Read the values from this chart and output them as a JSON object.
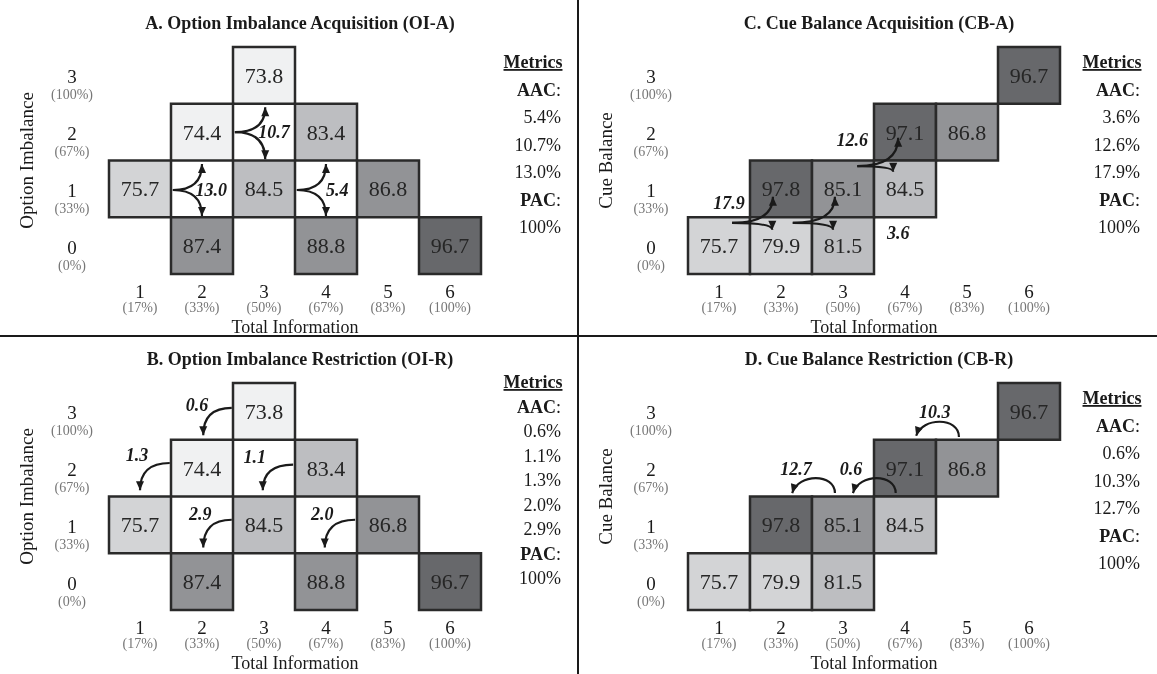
{
  "chart_data": [
    {
      "type": "heatmap",
      "data_labels": true,
      "title": "A. Option Imbalance Acquisition (OI-A)",
      "xlabel": "Total Information",
      "ylabel": "Option Imbalance",
      "categories": [
        "1\n(17%)",
        "2\n(33%)",
        "3\n(50%)",
        "4\n(67%)",
        "5\n(83%)",
        "6\n(100%)"
      ],
      "y_categories": [
        "3\n(100%)",
        "2\n(67%)",
        "1\n(33%)",
        "0\n(0%)"
      ],
      "cells": [
        [
          null,
          null,
          73.8,
          null,
          null,
          null
        ],
        [
          null,
          74.4,
          null,
          83.4,
          null,
          null
        ],
        [
          75.7,
          null,
          84.5,
          null,
          86.8,
          null
        ],
        [
          null,
          87.4,
          null,
          88.8,
          null,
          96.7
        ]
      ],
      "annotations": [
        "10.7",
        "13.0",
        "5.4",
        "Metrics\nAAC:\n5.4%\n10.7%\n13.0%\nPAC:\n100%"
      ]
    },
    {
      "type": "heatmap",
      "data_labels": true,
      "title": "C. Cue Balance Acquisition (CB-A)",
      "xlabel": "Total Information",
      "ylabel": "Cue Balance",
      "categories": [
        "1\n(17%)",
        "2\n(33%)",
        "3\n(50%)",
        "4\n(67%)",
        "5\n(83%)",
        "6\n(100%)"
      ],
      "y_categories": [
        "3\n(100%)",
        "2\n(67%)",
        "1\n(33%)",
        "0\n(0%)"
      ],
      "cells": [
        [
          null,
          null,
          null,
          null,
          null,
          96.7
        ],
        [
          null,
          null,
          null,
          97.1,
          86.8,
          null
        ],
        [
          null,
          97.8,
          85.1,
          84.5,
          null,
          null
        ],
        [
          75.7,
          79.9,
          81.5,
          null,
          null,
          null
        ]
      ],
      "annotations": [
        "17.9",
        "12.6",
        "3.6",
        "Metrics\nAAC:\n3.6%\n12.6%\n17.9%\nPAC:\n100%"
      ]
    },
    {
      "type": "heatmap",
      "data_labels": true,
      "title": "B. Option Imbalance Restriction (OI-R)",
      "xlabel": "Total Information",
      "ylabel": "Option Imbalance",
      "categories": [
        "1\n(17%)",
        "2\n(33%)",
        "3\n(50%)",
        "4\n(67%)",
        "5\n(83%)",
        "6\n(100%)"
      ],
      "y_categories": [
        "3\n(100%)",
        "2\n(67%)",
        "1\n(33%)",
        "0\n(0%)"
      ],
      "cells": [
        [
          null,
          null,
          73.8,
          null,
          null,
          null
        ],
        [
          null,
          74.4,
          null,
          83.4,
          null,
          null
        ],
        [
          75.7,
          null,
          84.5,
          null,
          86.8,
          null
        ],
        [
          null,
          87.4,
          null,
          88.8,
          null,
          96.7
        ]
      ],
      "annotations": [
        "0.6",
        "1.3",
        "1.1",
        "2.9",
        "2.0",
        "Metrics\nAAC:\n0.6%\n1.1%\n1.3%\n2.0%\n2.9%\nPAC:\n100%"
      ]
    },
    {
      "type": "heatmap",
      "data_labels": true,
      "title": "D. Cue Balance Restriction (CB-R)",
      "xlabel": "Total Information",
      "ylabel": "Cue Balance",
      "categories": [
        "1\n(17%)",
        "2\n(33%)",
        "3\n(50%)",
        "4\n(67%)",
        "5\n(83%)",
        "6\n(100%)"
      ],
      "y_categories": [
        "3\n(100%)",
        "2\n(67%)",
        "1\n(33%)",
        "0\n(0%)"
      ],
      "cells": [
        [
          null,
          null,
          null,
          null,
          null,
          96.7
        ],
        [
          null,
          null,
          null,
          97.1,
          86.8,
          null
        ],
        [
          null,
          97.8,
          85.1,
          84.5,
          null,
          null
        ],
        [
          75.7,
          79.9,
          81.5,
          null,
          null,
          null
        ]
      ],
      "annotations": [
        "12.7",
        "0.6",
        "10.3",
        "Metrics\nAAC:\n0.6%\n10.3%\n12.7%\nPAC:\n100%"
      ]
    }
  ]
}
